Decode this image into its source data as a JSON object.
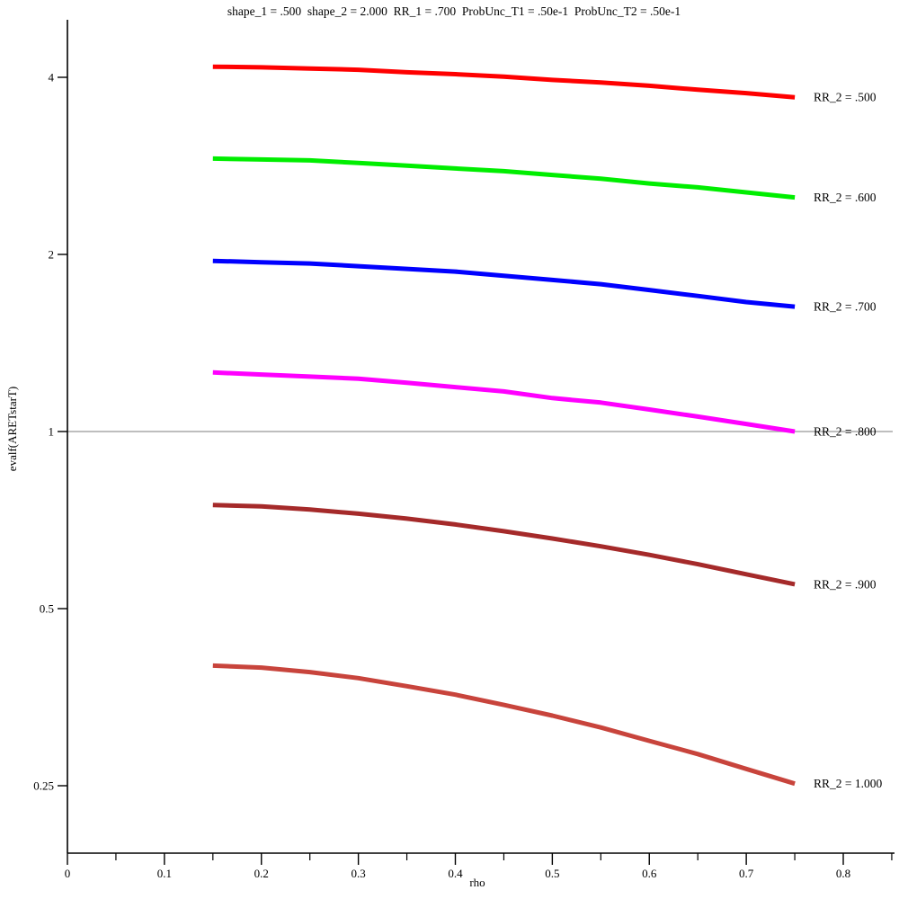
{
  "page": {
    "background": "#ffffff",
    "axis_color": "#000000"
  },
  "chart_data": {
    "type": "line",
    "title": "shape_1 = .500  shape_2 = 2.000  RR_1 = .700  ProbUnc_T1 = .50e-1  ProbUnc_T2 = .50e-1",
    "xlabel": "rho",
    "ylabel": "evalf(ARETstarT)",
    "grid": false,
    "legend_position": "right-of-curve-end",
    "x_axis": {
      "min": 0,
      "max": 0.85,
      "major_ticks": [
        0,
        0.1,
        0.2,
        0.3,
        0.4,
        0.5,
        0.6,
        0.7,
        0.8
      ],
      "tick_labels": [
        "0",
        "0.1",
        "0.2",
        "0.3",
        "0.4",
        "0.5",
        "0.6",
        "0.7",
        "0.8"
      ],
      "minor_ticks": [
        0.05,
        0.15,
        0.25,
        0.35,
        0.45,
        0.55,
        0.65,
        0.75,
        0.85
      ]
    },
    "y_axis": {
      "scale": "log2",
      "range": [
        0.2,
        4.6
      ],
      "ticks": [
        4,
        2,
        1,
        0.5,
        0.25
      ],
      "tick_labels": [
        "4",
        "2",
        "1",
        "0.5",
        "0.25"
      ]
    },
    "reference_line": {
      "y": 1,
      "color": "#a8a8a8"
    },
    "x": [
      0.15,
      0.2,
      0.25,
      0.3,
      0.35,
      0.4,
      0.45,
      0.5,
      0.55,
      0.6,
      0.65,
      0.7,
      0.75
    ],
    "series": [
      {
        "name": "RR_2 = .500",
        "color": "#ff0000",
        "values": [
          4.17,
          4.16,
          4.14,
          4.12,
          4.08,
          4.05,
          4.01,
          3.96,
          3.92,
          3.87,
          3.81,
          3.76,
          3.7
        ]
      },
      {
        "name": "RR_2 = .600",
        "color": "#00ee00",
        "values": [
          2.91,
          2.9,
          2.89,
          2.86,
          2.83,
          2.8,
          2.77,
          2.73,
          2.69,
          2.64,
          2.6,
          2.55,
          2.5
        ]
      },
      {
        "name": "RR_2 = .700",
        "color": "#0000ff",
        "values": [
          1.95,
          1.94,
          1.93,
          1.91,
          1.89,
          1.87,
          1.84,
          1.81,
          1.78,
          1.74,
          1.7,
          1.66,
          1.63
        ]
      },
      {
        "name": "RR_2 = .800",
        "color": "#ff00ff",
        "values": [
          1.26,
          1.25,
          1.24,
          1.23,
          1.21,
          1.19,
          1.17,
          1.14,
          1.12,
          1.09,
          1.06,
          1.03,
          1.0
        ]
      },
      {
        "name": "RR_2 = .900",
        "color": "#a52a2a",
        "values": [
          0.75,
          0.746,
          0.737,
          0.725,
          0.711,
          0.695,
          0.677,
          0.658,
          0.638,
          0.617,
          0.595,
          0.572,
          0.55
        ]
      },
      {
        "name": "RR_2 = 1.000",
        "color": "#c8443c",
        "values": [
          0.4,
          0.397,
          0.39,
          0.381,
          0.369,
          0.357,
          0.343,
          0.329,
          0.314,
          0.298,
          0.283,
          0.267,
          0.252
        ]
      }
    ]
  }
}
